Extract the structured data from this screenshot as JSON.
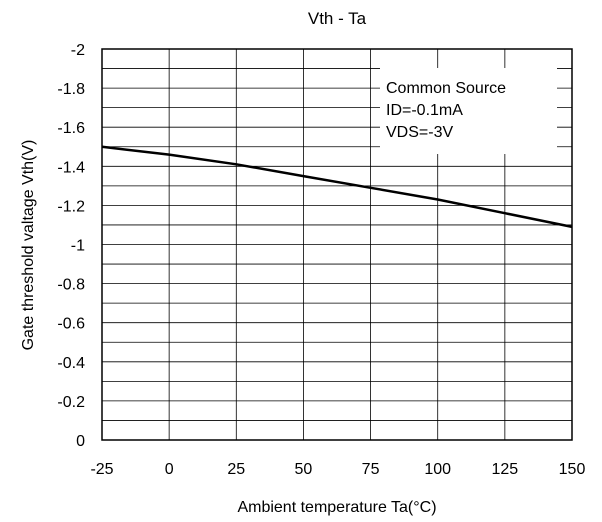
{
  "chart_data": {
    "type": "line",
    "title": "Vth - Ta",
    "xlabel": "Ambient temperature Ta(°C)",
    "ylabel": "Gate threshold valtage Vth(V)",
    "xlim": [
      -25,
      150
    ],
    "ylim": [
      0,
      -2
    ],
    "x_ticks": [
      -25,
      0,
      25,
      50,
      75,
      100,
      125,
      150
    ],
    "y_ticks": [
      0,
      -0.2,
      -0.4,
      -0.6,
      -0.8,
      -1,
      -1.2,
      -1.4,
      -1.6,
      -1.8,
      -2
    ],
    "x_tick_labels": [
      "-25",
      "0",
      "25",
      "50",
      "75",
      "100",
      "125",
      "150"
    ],
    "y_tick_labels": [
      "0",
      "-0.2",
      "-0.4",
      "-0.6",
      "-0.8",
      "-1",
      "-1.2",
      "-1.4",
      "-1.6",
      "-1.8",
      "-2"
    ],
    "grid": true,
    "minor_y_grid_step": 0.1,
    "annotation": {
      "lines": [
        "Common Source",
        "ID=-0.1mA",
        "VDS=-3V"
      ],
      "placement": "top-right"
    },
    "series": [
      {
        "x": [
          -25,
          0,
          25,
          50,
          75,
          100,
          125,
          150
        ],
        "y": [
          -1.5,
          -1.46,
          -1.41,
          -1.35,
          -1.29,
          -1.23,
          -1.16,
          -1.09
        ],
        "color": "#000000"
      }
    ]
  }
}
